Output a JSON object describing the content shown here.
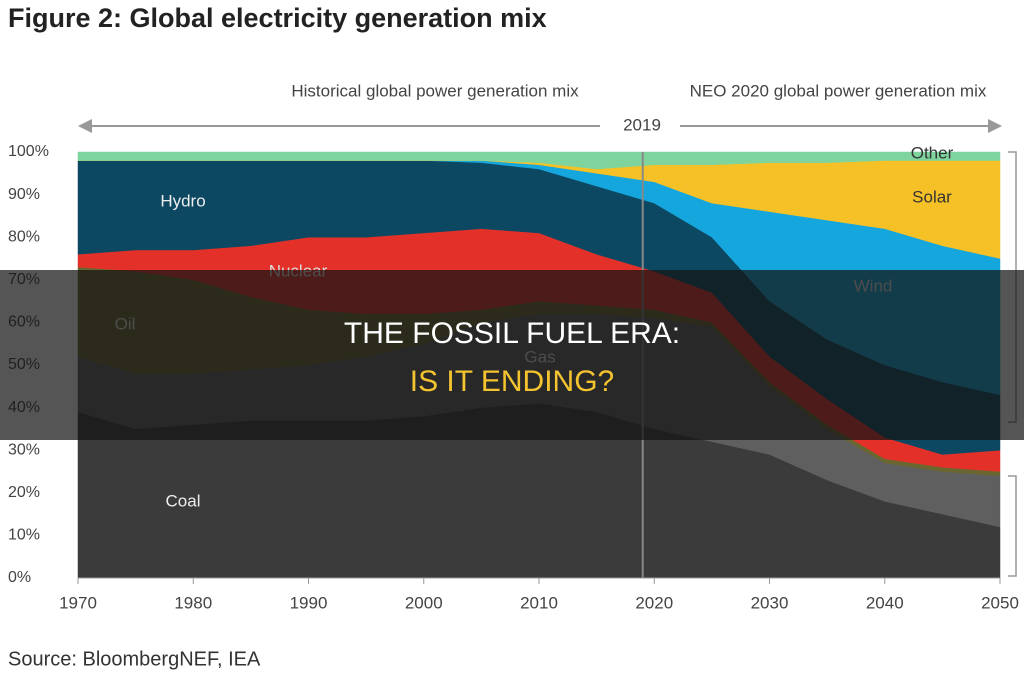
{
  "chart_data": {
    "type": "stacked_area",
    "title": "Figure 2: Global electricity generation mix",
    "historical_label": "Historical global power generation mix",
    "forecast_label": "NEO 2020  global power generation mix",
    "divider_year": 2019,
    "source": "Source: BloombergNEF, IEA",
    "x": [
      1970,
      1975,
      1980,
      1985,
      1990,
      1995,
      2000,
      2005,
      2010,
      2015,
      2020,
      2025,
      2030,
      2035,
      2040,
      2045,
      2050
    ],
    "xlim": [
      1970,
      2050
    ],
    "xticks": [
      1970,
      1980,
      1990,
      2000,
      2010,
      2020,
      2030,
      2040,
      2050
    ],
    "ylim": [
      0,
      100
    ],
    "yticks": [
      {
        "value": 0,
        "label": "0%"
      },
      {
        "value": 10,
        "label": "10%"
      },
      {
        "value": 20,
        "label": "20%"
      },
      {
        "value": 30,
        "label": "30%"
      },
      {
        "value": 40,
        "label": "40%"
      },
      {
        "value": 50,
        "label": "50%"
      },
      {
        "value": 60,
        "label": "60%"
      },
      {
        "value": 70,
        "label": "70%"
      },
      {
        "value": 80,
        "label": "80%"
      },
      {
        "value": 90,
        "label": "90%"
      },
      {
        "value": 100,
        "label": "100%"
      }
    ],
    "series": [
      {
        "name": "Coal",
        "color": "#3b3b3b",
        "values": [
          39,
          35,
          36,
          37,
          37,
          37,
          38,
          40,
          41,
          39,
          35,
          32,
          29,
          23,
          18,
          15,
          12
        ]
      },
      {
        "name": "Gas",
        "color": "#5f5f5f",
        "values": [
          13,
          13,
          12,
          12,
          13,
          15,
          17,
          20,
          21,
          23,
          26,
          27,
          16,
          12,
          9,
          10,
          12
        ]
      },
      {
        "name": "Oil",
        "color": "#6a6630",
        "values": [
          21,
          24,
          22,
          17,
          13,
          10,
          7,
          3,
          3,
          2,
          2,
          1,
          1,
          1,
          1,
          1,
          1
        ]
      },
      {
        "name": "Nuclear",
        "color": "#e3312a",
        "values": [
          3,
          5,
          7,
          12,
          17,
          18,
          19,
          19,
          16,
          12,
          9,
          7,
          6,
          6,
          5,
          3,
          5
        ]
      },
      {
        "name": "Hydro",
        "color": "#0c4862",
        "values": [
          22,
          21,
          21,
          20,
          18,
          18,
          17,
          15.5,
          15,
          16,
          16,
          13,
          13,
          14,
          17,
          17,
          13
        ]
      },
      {
        "name": "Wind",
        "color": "#14a6dc",
        "values": [
          0,
          0,
          0,
          0,
          0,
          0,
          0,
          0.5,
          1,
          3,
          5,
          8,
          21,
          28,
          32,
          32,
          32
        ]
      },
      {
        "name": "Solar",
        "color": "#f5c126",
        "values": [
          0,
          0,
          0,
          0,
          0,
          0,
          0,
          0,
          0.5,
          1,
          4,
          9,
          11.5,
          13.5,
          16,
          20,
          23
        ]
      },
      {
        "name": "Other",
        "color": "#7fd49e",
        "values": [
          2,
          2,
          2,
          2,
          2,
          2,
          2,
          2,
          2.5,
          4,
          3,
          3,
          2.5,
          2.5,
          2,
          2,
          2
        ]
      }
    ]
  },
  "overlay": {
    "line1": "THE FOSSIL FUEL ERA:",
    "line2": "IS IT ENDING?"
  }
}
